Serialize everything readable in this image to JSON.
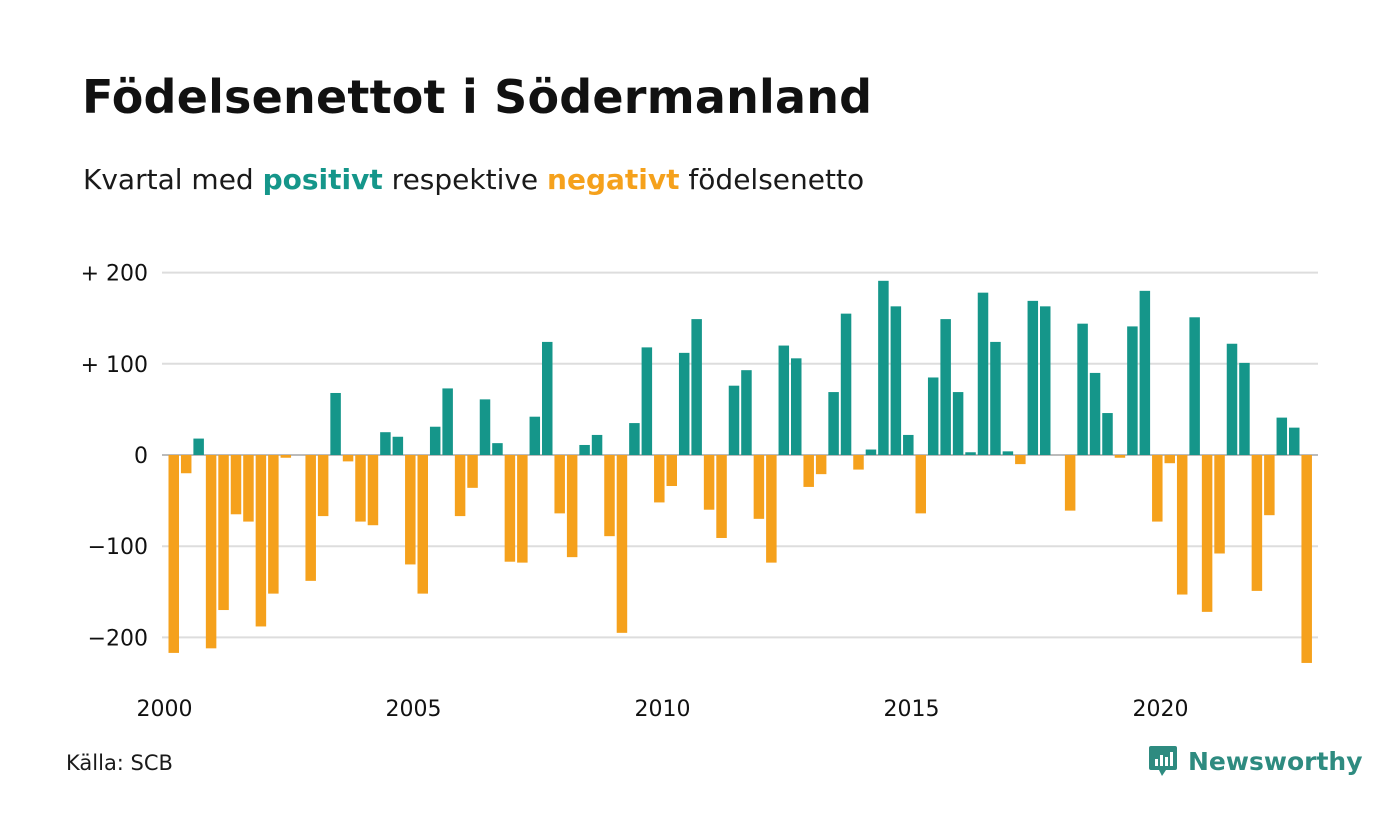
{
  "title": "Födelsenettot i Södermanland",
  "subtitle": {
    "prefix": "Kvartal med ",
    "positive": "positivt",
    "middle": " respektive ",
    "negative": "negativt",
    "suffix": " födelsenetto"
  },
  "source": "Källa: SCB",
  "brand": {
    "name": "Newsworthy",
    "icon": "newsworthy-logo-icon"
  },
  "colors": {
    "positive": "#15968a",
    "negative": "#f5a11c",
    "grid": "#dddddd"
  },
  "chart_data": {
    "type": "bar",
    "title": "Födelsenettot i Södermanland",
    "xlabel": "",
    "ylabel": "",
    "ylim": [
      -250,
      220
    ],
    "grid": true,
    "y_ticks": [
      200,
      100,
      0,
      -100,
      -200
    ],
    "y_tick_labels": [
      "+ 200",
      "+ 100",
      "0",
      "−100",
      "−200"
    ],
    "x_ticks": [
      2000,
      2005,
      2010,
      2015,
      2020
    ],
    "x_tick_labels": [
      "2000",
      "2005",
      "2010",
      "2015",
      "2020"
    ],
    "x_start": 2000,
    "x_start_quarter": 1,
    "values": [
      -217,
      -20,
      18,
      -212,
      -170,
      -65,
      -73,
      -188,
      -152,
      -3,
      0,
      -138,
      -67,
      68,
      -7,
      -73,
      -77,
      25,
      20,
      -120,
      -152,
      31,
      73,
      -67,
      -36,
      61,
      13,
      -117,
      -118,
      42,
      124,
      -64,
      -112,
      11,
      22,
      -89,
      -195,
      35,
      118,
      -52,
      -34,
      112,
      149,
      -60,
      -91,
      76,
      93,
      -70,
      -118,
      120,
      106,
      -35,
      -21,
      69,
      155,
      -16,
      6,
      191,
      163,
      22,
      -64,
      85,
      149,
      69,
      3,
      178,
      124,
      4,
      -10,
      169,
      163,
      0,
      -61,
      144,
      90,
      46,
      -3,
      141,
      180,
      -73,
      -9,
      -153,
      151,
      -172,
      -108,
      122,
      101,
      -149,
      -66,
      41,
      30,
      -228
    ]
  }
}
